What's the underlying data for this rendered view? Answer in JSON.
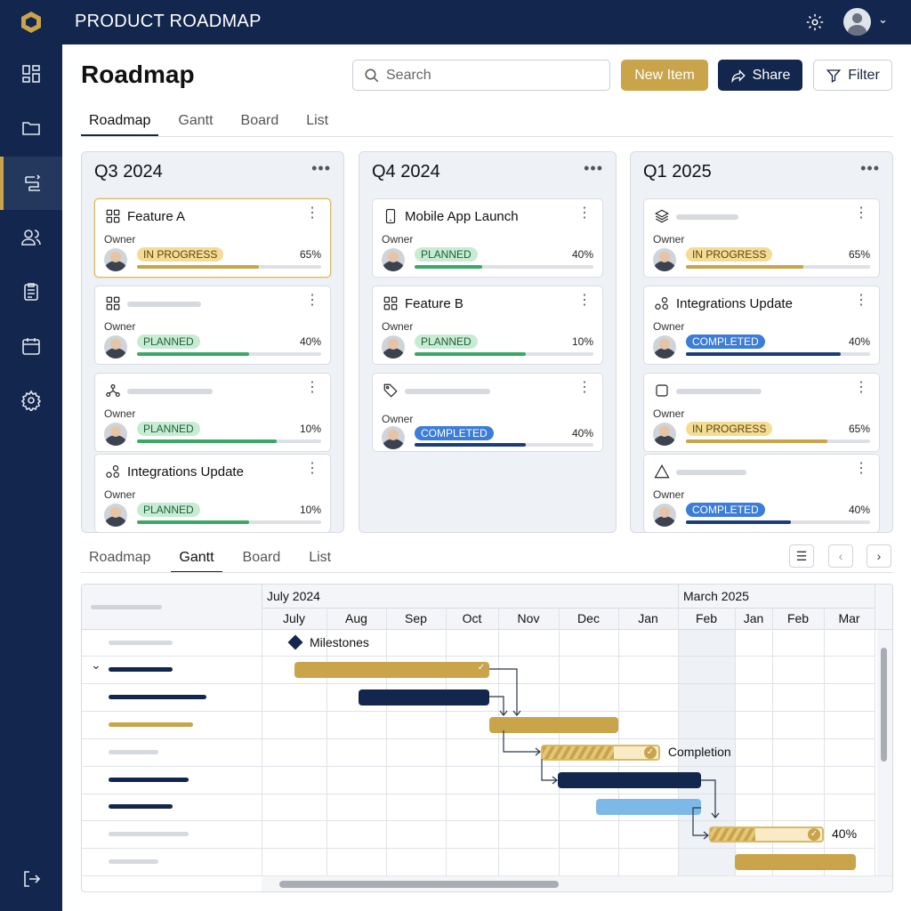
{
  "app": {
    "title": "PRODUCT ROADMAP",
    "logo": "hexagon-logo",
    "icons": [
      "gear-icon",
      "avatar",
      "chevron-down-icon"
    ]
  },
  "sidebar": {
    "items": [
      {
        "icon": "dashboard-icon"
      },
      {
        "icon": "folder-icon"
      },
      {
        "icon": "roadmap-icon",
        "active": true
      },
      {
        "icon": "users-icon"
      },
      {
        "icon": "clipboard-icon"
      },
      {
        "icon": "calendar-icon"
      },
      {
        "icon": "settings-icon"
      }
    ],
    "bottom": {
      "icon": "logout-icon"
    }
  },
  "header": {
    "title": "Roadmap",
    "search_placeholder": "Search",
    "new_item": "New Item",
    "share": "Share",
    "filter": "Filter"
  },
  "tabs": [
    {
      "label": "Roadmap",
      "active": true
    },
    {
      "label": "Gantt"
    },
    {
      "label": "Board"
    },
    {
      "label": "List"
    }
  ],
  "status_colors": {
    "IN PROGRESS": {
      "pill": "#f5dc95",
      "text": "#5a4512",
      "bar": "#c9a44a"
    },
    "PLANNED": {
      "pill": "#c8ecd3",
      "text": "#1d5e35",
      "bar": "#3aa866"
    },
    "COMPLETED": {
      "pill": "#3b7dd8",
      "text": "#ffffff",
      "bar": "#1c3d78"
    }
  },
  "columns": [
    {
      "title": "Q3 2024",
      "more": "•••",
      "cards": [
        {
          "icon": "grid-icon",
          "title": "Feature A",
          "owner": "Owner",
          "status": "IN PROGRESS",
          "pct": "65%",
          "fill": 0.66,
          "highlight": true
        },
        {
          "icon": "grid-icon",
          "title": "",
          "owner": "Owner",
          "status": "PLANNED",
          "pct": "40%",
          "fill": 0.61
        },
        {
          "icon": "network-icon",
          "title": "",
          "owner": "Owner",
          "status": "PLANNED",
          "pct": "10%",
          "fill": 0.76
        },
        {
          "icon": "circles-icon",
          "title": "Integrations Update",
          "owner": "Owner",
          "status": "PLANNED",
          "pct": "10%",
          "fill": 0.61
        }
      ]
    },
    {
      "title": "Q4 2024",
      "more": "•••",
      "cards": [
        {
          "icon": "phone-icon",
          "title": "Mobile App Launch",
          "owner": "Owner",
          "status": "PLANNED",
          "pct": "40%",
          "fill": 0.38
        },
        {
          "icon": "grid-icon",
          "title": "Feature B",
          "owner": "Owner",
          "status": "PLANNED",
          "pct": "10%",
          "fill": 0.62
        },
        {
          "icon": "tag-icon",
          "title": "",
          "owner": "Owner",
          "status": "COMPLETED",
          "pct": "40%",
          "fill": 0.62
        }
      ]
    },
    {
      "title": "Q1 2025",
      "more": "•••",
      "cards": [
        {
          "icon": "layers-icon",
          "title": "",
          "owner": "Owner",
          "status": "IN PROGRESS",
          "pct": "65%",
          "fill": 0.64
        },
        {
          "icon": "circles-icon",
          "title": "Integrations Update",
          "owner": "Owner",
          "status": "COMPLETED",
          "pct": "40%",
          "fill": 0.84
        },
        {
          "icon": "square-icon",
          "title": "",
          "owner": "Owner",
          "status": "IN PROGRESS",
          "pct": "65%",
          "fill": 0.77
        },
        {
          "icon": "triangle-icon",
          "title": "",
          "owner": "Owner",
          "status": "COMPLETED",
          "pct": "40%",
          "fill": 0.57
        }
      ]
    }
  ],
  "gantt_tabs": [
    {
      "label": "Roadmap"
    },
    {
      "label": "Gantt",
      "active": true
    },
    {
      "label": "Board"
    },
    {
      "label": "List"
    }
  ],
  "gantt": {
    "periods": [
      {
        "label": "July 2024",
        "from_col": 0
      },
      {
        "label": "March 2025",
        "from_col": 7
      }
    ],
    "months": [
      "July",
      "Aug",
      "Sep",
      "Oct",
      "Nov",
      "Dec",
      "Jan",
      "Feb",
      "Jan",
      "Feb",
      "Mar"
    ],
    "highlight_col": 7,
    "milestone_label": "Milestones",
    "bars": [
      {
        "row": 1,
        "start": 0.5,
        "end": 3.83,
        "color": "#c9a44a",
        "done": true
      },
      {
        "row": 2,
        "start": 1.54,
        "end": 3.83,
        "color": "#13264d"
      },
      {
        "row": 3,
        "start": 3.83,
        "end": 6.0,
        "color": "#c9a44a"
      },
      {
        "row": 4,
        "start": 4.7,
        "end": 6.7,
        "color": "#c9a44a",
        "progress": 0.62,
        "done": true,
        "label": "Completion"
      },
      {
        "row": 5,
        "start": 4.99,
        "end": 7.4,
        "color": "#13264d"
      },
      {
        "row": 6,
        "start": 5.63,
        "end": 7.4,
        "color": "#7db9e8"
      },
      {
        "row": 7,
        "start": 7.55,
        "end": 10.0,
        "color": "#c9a44a",
        "progress": 0.4,
        "done": true,
        "label": "40%"
      },
      {
        "row": 8,
        "start": 8.0,
        "end": 10.63,
        "color": "#c9a44a"
      }
    ]
  }
}
